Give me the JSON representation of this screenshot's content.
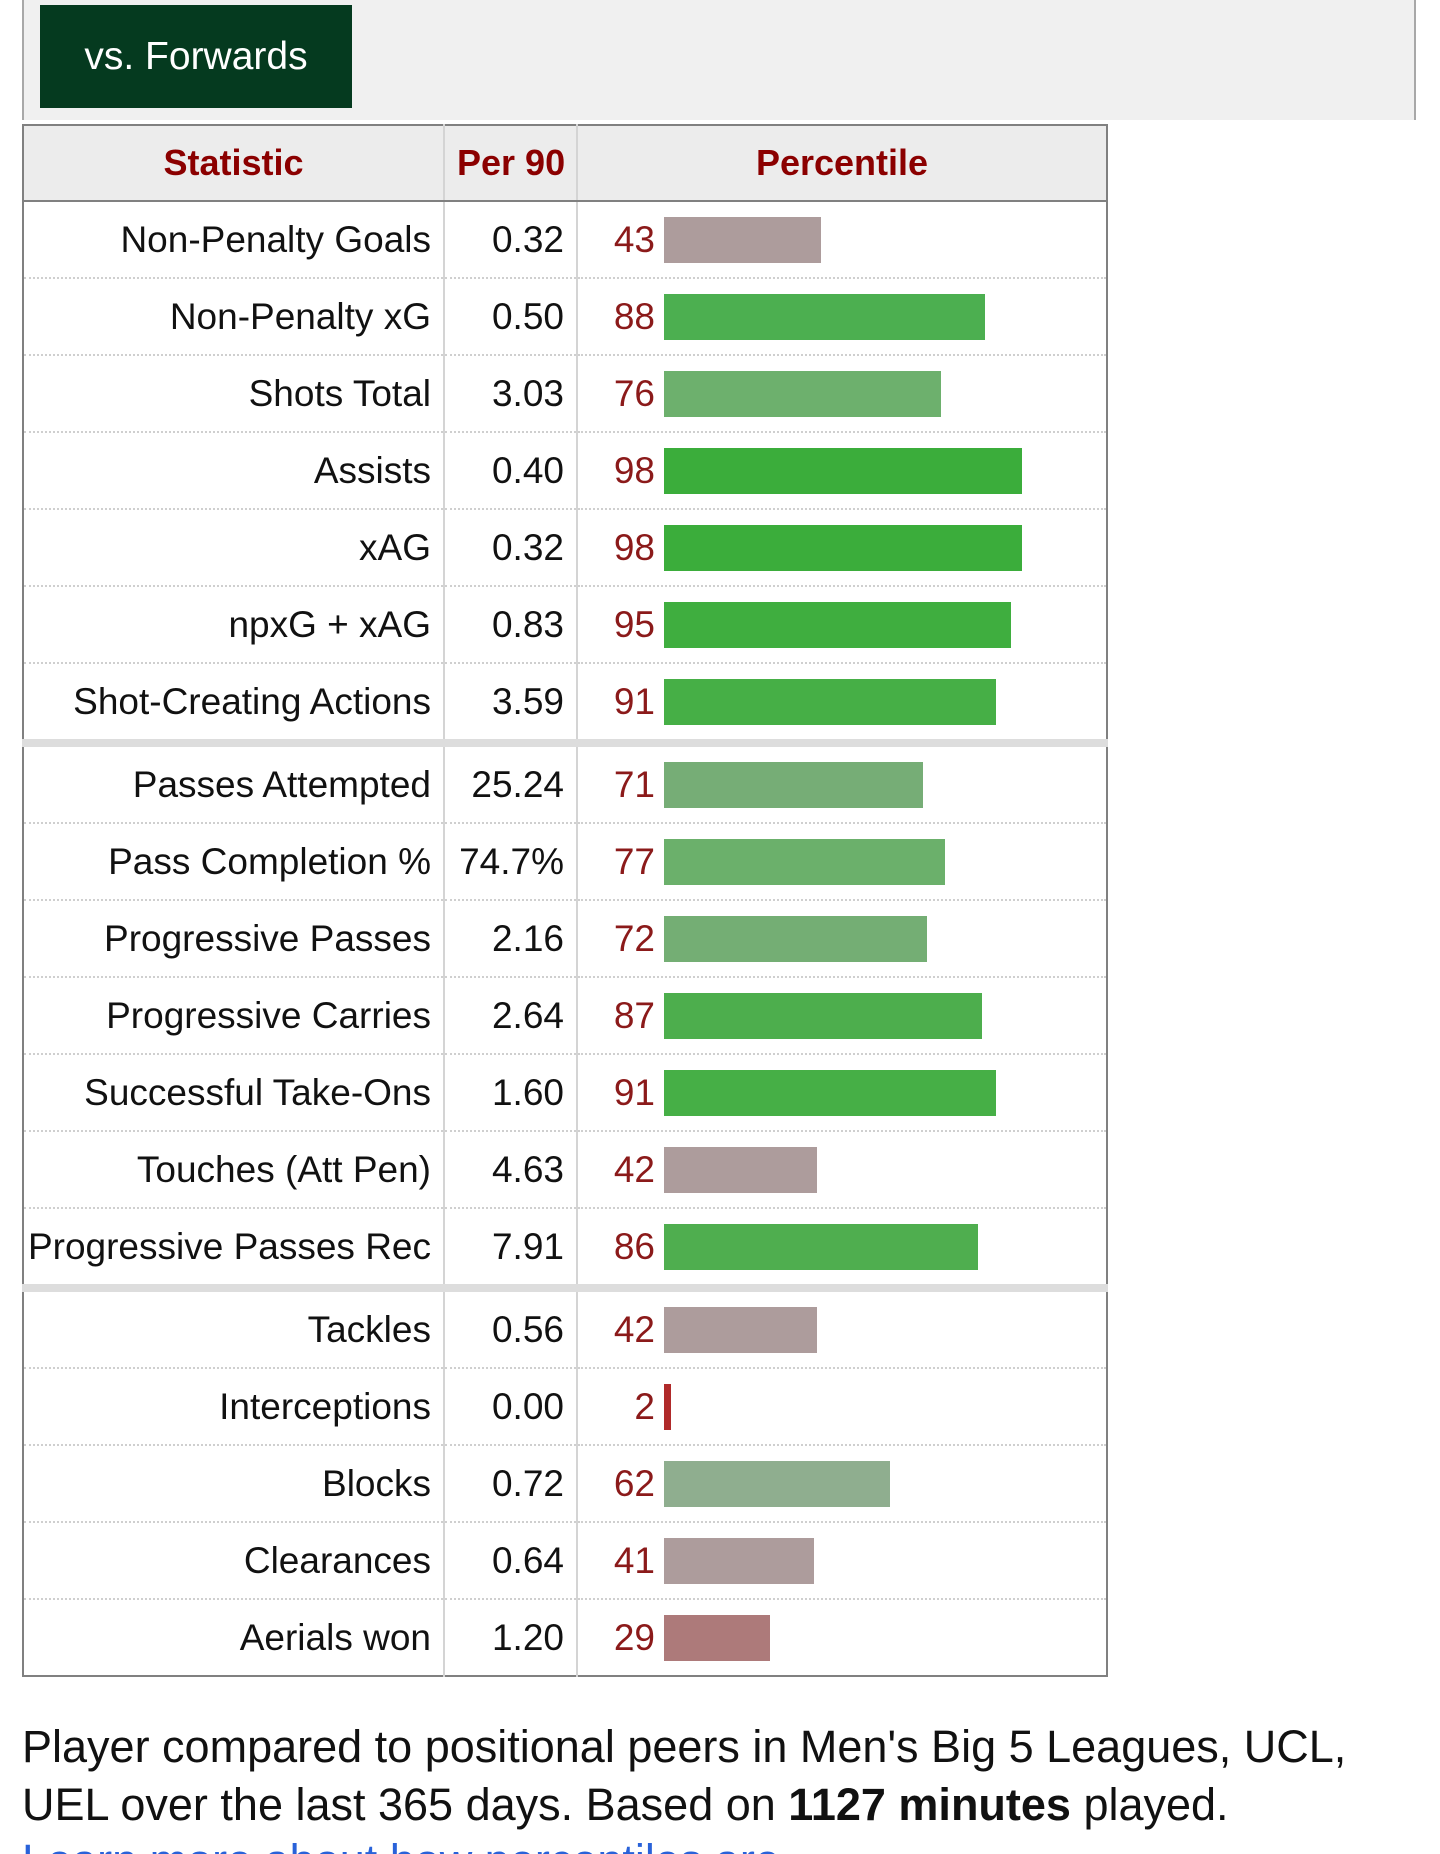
{
  "tabs": {
    "active_label": "vs. Forwards"
  },
  "table": {
    "headers": {
      "statistic": "Statistic",
      "per90": "Per 90",
      "percentile": "Percentile"
    },
    "rows": [
      {
        "stat": "Non-Penalty Goals",
        "per90": "0.32",
        "percentile": 43,
        "bar_color": "#ad9c9c"
      },
      {
        "stat": "Non-Penalty xG",
        "per90": "0.50",
        "percentile": 88,
        "bar_color": "#4caf50"
      },
      {
        "stat": "Shots Total",
        "per90": "3.03",
        "percentile": 76,
        "bar_color": "#6db06d"
      },
      {
        "stat": "Assists",
        "per90": "0.40",
        "percentile": 98,
        "bar_color": "#3bad3b"
      },
      {
        "stat": "xAG",
        "per90": "0.32",
        "percentile": 98,
        "bar_color": "#3bad3b"
      },
      {
        "stat": "npxG + xAG",
        "per90": "0.83",
        "percentile": 95,
        "bar_color": "#3fae3f"
      },
      {
        "stat": "Shot-Creating Actions",
        "per90": "3.59",
        "percentile": 91,
        "bar_color": "#46af46",
        "group_end": true
      },
      {
        "stat": "Passes Attempted",
        "per90": "25.24",
        "percentile": 71,
        "bar_color": "#76ad76"
      },
      {
        "stat": "Pass Completion %",
        "per90": "74.7%",
        "percentile": 77,
        "bar_color": "#6bb06b"
      },
      {
        "stat": "Progressive Passes",
        "per90": "2.16",
        "percentile": 72,
        "bar_color": "#74ae74"
      },
      {
        "stat": "Progressive Carries",
        "per90": "2.64",
        "percentile": 87,
        "bar_color": "#4dae4d"
      },
      {
        "stat": "Successful Take-Ons",
        "per90": "1.60",
        "percentile": 91,
        "bar_color": "#46af46"
      },
      {
        "stat": "Touches (Att Pen)",
        "per90": "4.63",
        "percentile": 42,
        "bar_color": "#ad9c9c"
      },
      {
        "stat": "Progressive Passes Rec",
        "per90": "7.91",
        "percentile": 86,
        "bar_color": "#4fae4f",
        "group_end": true
      },
      {
        "stat": "Tackles",
        "per90": "0.56",
        "percentile": 42,
        "bar_color": "#ad9c9c"
      },
      {
        "stat": "Interceptions",
        "per90": "0.00",
        "percentile": 2,
        "bar_color": "#b02a2a"
      },
      {
        "stat": "Blocks",
        "per90": "0.72",
        "percentile": 62,
        "bar_color": "#8fae8f"
      },
      {
        "stat": "Clearances",
        "per90": "0.64",
        "percentile": 41,
        "bar_color": "#ad9c9c"
      },
      {
        "stat": "Aerials won",
        "per90": "1.20",
        "percentile": 29,
        "bar_color": "#ad7a7a"
      }
    ]
  },
  "footer": {
    "text_before": "Player compared to positional peers in Men's Big 5 Leagues, UCL, UEL over the last 365 days. Based on ",
    "minutes_bold": "1127 minutes",
    "text_after": " played.",
    "link_text": "Learn more about how percentiles are calculated."
  }
}
